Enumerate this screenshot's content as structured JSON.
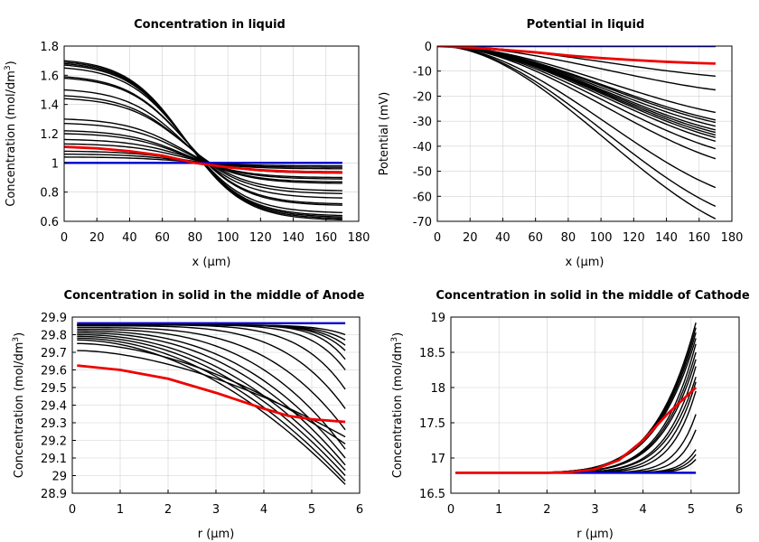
{
  "figure": "Battery simulation results (concentration and potential profiles)",
  "colors": {
    "family": "#000000",
    "initial": "#0000cc",
    "highlight": "#ee0000"
  },
  "chart_data": [
    {
      "id": "conc-liquid",
      "type": "line",
      "title": "Concentration in liquid",
      "xlabel": "x (μm)",
      "ylabel": "Concentration (mol/dm3)",
      "xlim": [
        0,
        180
      ],
      "ylim": [
        0.6,
        1.8
      ],
      "xticks": [
        0,
        20,
        40,
        60,
        80,
        100,
        120,
        140,
        160,
        180
      ],
      "yticks": [
        0.6,
        0.8,
        1,
        1.2,
        1.4,
        1.6,
        1.8
      ],
      "yticklabels": [
        "0.6",
        "0.8",
        "1",
        "1.2",
        "1.4",
        "1.6",
        "1.8"
      ],
      "family": {
        "model": "logistic",
        "x_range": [
          0,
          170
        ],
        "midpoint": 74,
        "width": 18,
        "start_values": [
          1.7,
          1.69,
          1.68,
          1.67,
          1.65,
          1.59,
          1.58,
          1.5,
          1.46,
          1.44,
          1.3,
          1.27,
          1.22,
          1.2,
          1.16,
          1.13,
          1.08,
          1.06,
          1.04
        ],
        "end_values": [
          0.61,
          0.62,
          0.63,
          0.64,
          0.66,
          0.71,
          0.72,
          0.76,
          0.79,
          0.81,
          0.86,
          0.87,
          0.89,
          0.9,
          0.93,
          0.94,
          0.96,
          0.97,
          0.98
        ]
      },
      "initial": {
        "x": [
          0,
          170
        ],
        "y": [
          1.0,
          1.0
        ]
      },
      "highlight": {
        "x": [
          0,
          20,
          40,
          60,
          80,
          100,
          120,
          140,
          160,
          170
        ],
        "y": [
          1.11,
          1.1,
          1.08,
          1.05,
          1.0,
          0.97,
          0.95,
          0.94,
          0.935,
          0.935
        ]
      }
    },
    {
      "id": "potential-liquid",
      "type": "line",
      "title": "Potential in liquid",
      "xlabel": "x (μm)",
      "ylabel": "Potential (mV)",
      "xlim": [
        0,
        180
      ],
      "ylim": [
        -70,
        0
      ],
      "xticks": [
        0,
        20,
        40,
        60,
        80,
        100,
        120,
        140,
        160,
        180
      ],
      "yticks": [
        0,
        -10,
        -20,
        -30,
        -40,
        -50,
        -60,
        -70
      ],
      "yticklabels": [
        "0",
        "-10",
        "-20",
        "-30",
        "-40",
        "-50",
        "-60",
        "-70"
      ],
      "family": {
        "model": "ramp",
        "x_range": [
          0,
          170
        ],
        "end_values": [
          -69,
          -64,
          -56.5,
          -45,
          -41,
          -38,
          -36.5,
          -35.5,
          -34.5,
          -33.5,
          -32,
          -30.5,
          -29.5,
          -26.5,
          -17.5,
          -12
        ]
      },
      "initial": {
        "x": [
          0,
          170
        ],
        "y": [
          0,
          0
        ]
      },
      "highlight": {
        "x": [
          0,
          20,
          40,
          60,
          80,
          100,
          120,
          140,
          160,
          170
        ],
        "y": [
          0,
          -0.6,
          -1.5,
          -2.5,
          -3.8,
          -4.8,
          -5.6,
          -6.3,
          -6.8,
          -7.0
        ]
      }
    },
    {
      "id": "conc-solid-anode",
      "type": "line",
      "title": "Concentration in solid in the middle of Anode",
      "xlabel": "r (μm)",
      "ylabel": "Concentration (mol/dm3)",
      "xlim": [
        0,
        6
      ],
      "ylim": [
        28.9,
        29.9
      ],
      "xticks": [
        0,
        1,
        2,
        3,
        4,
        5,
        6
      ],
      "yticks": [
        28.9,
        29,
        29.1,
        29.2,
        29.3,
        29.4,
        29.5,
        29.6,
        29.7,
        29.8,
        29.9
      ],
      "yticklabels": [
        "28.9",
        "29",
        "29.1",
        "29.2",
        "29.3",
        "29.4",
        "29.5",
        "29.6",
        "29.7",
        "29.8",
        "29.9"
      ],
      "family": {
        "model": "power",
        "x_range": [
          0.1,
          5.7
        ],
        "curves": [
          {
            "start": 29.855,
            "end": 29.8,
            "power": 10
          },
          {
            "start": 29.855,
            "end": 29.77,
            "power": 10
          },
          {
            "start": 29.855,
            "end": 29.74,
            "power": 10
          },
          {
            "start": 29.855,
            "end": 29.71,
            "power": 10
          },
          {
            "start": 29.855,
            "end": 29.66,
            "power": 10
          },
          {
            "start": 29.855,
            "end": 29.6,
            "power": 8
          },
          {
            "start": 29.855,
            "end": 29.49,
            "power": 6
          },
          {
            "start": 29.85,
            "end": 29.38,
            "power": 4.5
          },
          {
            "start": 29.84,
            "end": 29.26,
            "power": 3.5
          },
          {
            "start": 29.83,
            "end": 29.15,
            "power": 3
          },
          {
            "start": 29.82,
            "end": 29.1,
            "power": 2.6
          },
          {
            "start": 29.81,
            "end": 29.06,
            "power": 2.4
          },
          {
            "start": 29.8,
            "end": 29.03,
            "power": 2.2
          },
          {
            "start": 29.79,
            "end": 29.0,
            "power": 2.1
          },
          {
            "start": 29.78,
            "end": 28.97,
            "power": 2.0
          },
          {
            "start": 29.77,
            "end": 28.95,
            "power": 1.9
          },
          {
            "start": 29.75,
            "end": 29.18,
            "power": 1.8
          },
          {
            "start": 29.71,
            "end": 29.22,
            "power": 1.7
          }
        ]
      },
      "initial": {
        "x": [
          0.1,
          5.7
        ],
        "y": [
          29.865,
          29.865
        ]
      },
      "highlight": {
        "x": [
          0.1,
          1,
          2,
          3,
          4,
          4.5,
          5,
          5.7
        ],
        "y": [
          29.625,
          29.6,
          29.55,
          29.47,
          29.38,
          29.34,
          29.32,
          29.305
        ]
      }
    },
    {
      "id": "conc-solid-cathode",
      "type": "line",
      "title": "Concentration in solid in the middle of Cathode",
      "xlabel": "r (μm)",
      "ylabel": "Concentration (mol/dm3)",
      "xlim": [
        0,
        6
      ],
      "ylim": [
        16.5,
        19
      ],
      "xticks": [
        0,
        1,
        2,
        3,
        4,
        5,
        6
      ],
      "yticks": [
        16.5,
        17,
        17.5,
        18,
        18.5,
        19
      ],
      "yticklabels": [
        "16.5",
        "17",
        "17.5",
        "18",
        "18.5",
        "19"
      ],
      "family": {
        "model": "power",
        "x_range": [
          0.1,
          5.1
        ],
        "curves": [
          {
            "start": 16.79,
            "end": 18.92,
            "power": 6
          },
          {
            "start": 16.79,
            "end": 18.85,
            "power": 6
          },
          {
            "start": 16.79,
            "end": 18.78,
            "power": 6
          },
          {
            "start": 16.79,
            "end": 18.7,
            "power": 6
          },
          {
            "start": 16.79,
            "end": 18.62,
            "power": 7
          },
          {
            "start": 16.79,
            "end": 18.5,
            "power": 7
          },
          {
            "start": 16.79,
            "end": 18.4,
            "power": 7
          },
          {
            "start": 16.79,
            "end": 18.3,
            "power": 8
          },
          {
            "start": 16.79,
            "end": 18.15,
            "power": 8
          },
          {
            "start": 16.79,
            "end": 18.08,
            "power": 9
          },
          {
            "start": 16.79,
            "end": 17.95,
            "power": 10
          },
          {
            "start": 16.79,
            "end": 17.62,
            "power": 12
          },
          {
            "start": 16.79,
            "end": 17.4,
            "power": 14
          },
          {
            "start": 16.79,
            "end": 17.12,
            "power": 16
          },
          {
            "start": 16.79,
            "end": 17.05,
            "power": 18
          },
          {
            "start": 16.79,
            "end": 16.98,
            "power": 20
          }
        ]
      },
      "initial": {
        "x": [
          0.1,
          5.1
        ],
        "y": [
          16.79,
          16.79
        ]
      },
      "highlight": {
        "x": [
          0.1,
          1,
          2,
          2.5,
          3,
          3.5,
          4,
          4.5,
          5.1
        ],
        "y": [
          16.79,
          16.79,
          16.79,
          16.8,
          16.84,
          16.97,
          17.25,
          17.62,
          18.0
        ]
      }
    }
  ]
}
